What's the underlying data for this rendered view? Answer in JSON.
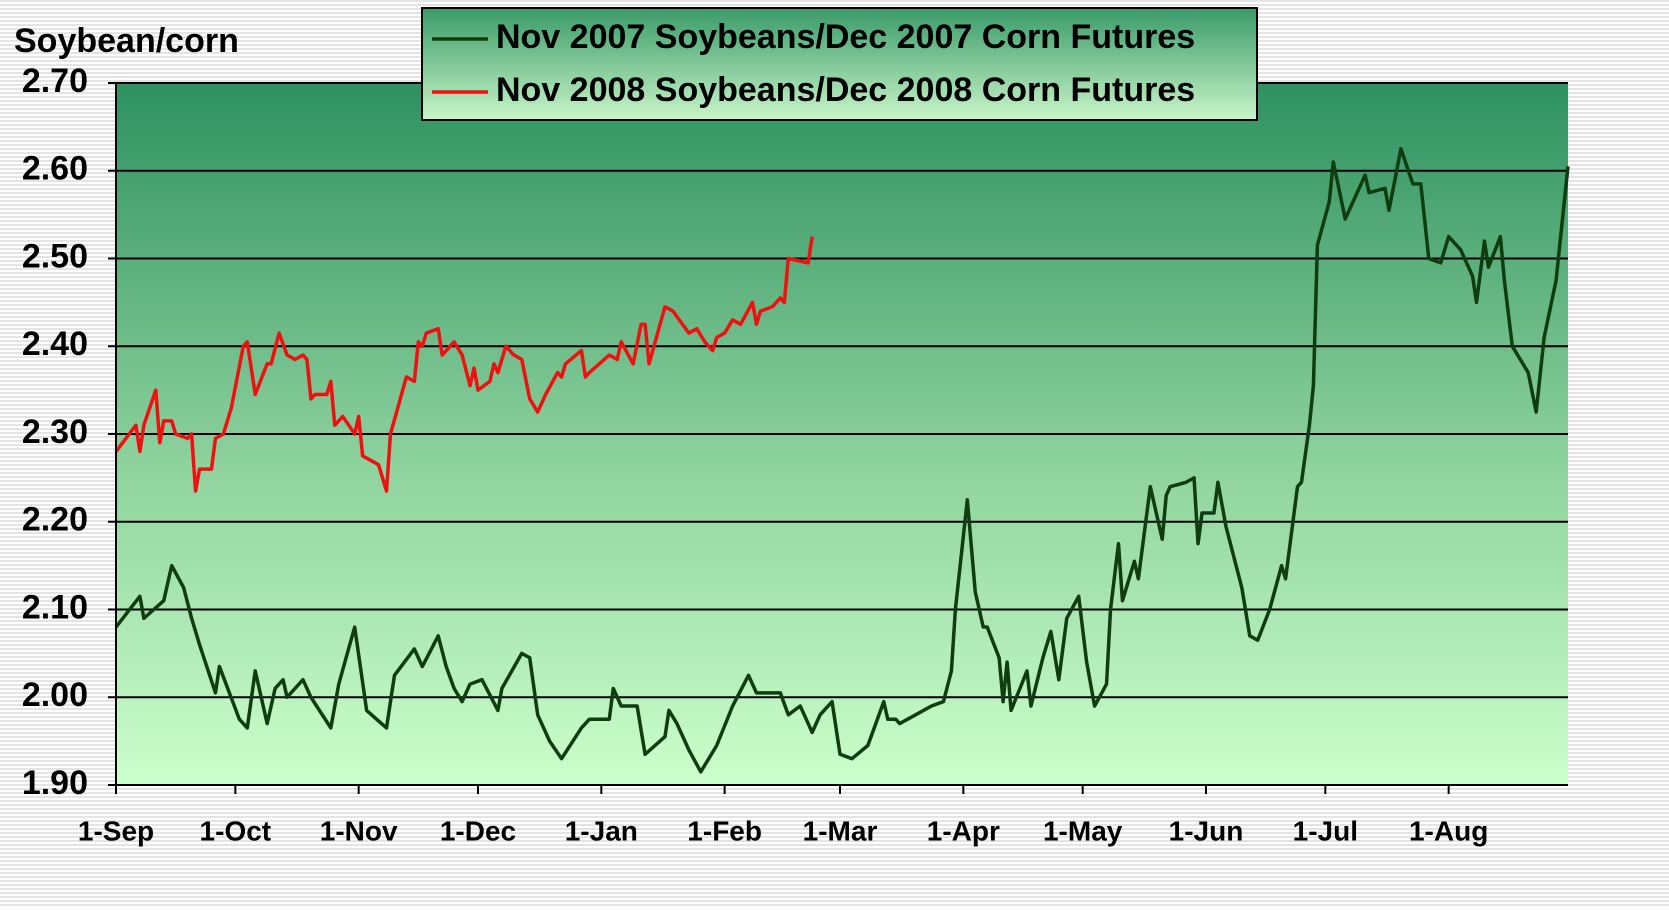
{
  "chart_data": {
    "type": "line",
    "y_label": "Soybean/corn",
    "xlim": [
      0,
      365
    ],
    "xticks": [
      {
        "value": 0,
        "label": "1-Sep"
      },
      {
        "value": 30,
        "label": "1-Oct"
      },
      {
        "value": 61,
        "label": "1-Nov"
      },
      {
        "value": 91,
        "label": "1-Dec"
      },
      {
        "value": 122,
        "label": "1-Jan"
      },
      {
        "value": 153,
        "label": "1-Feb"
      },
      {
        "value": 182,
        "label": "1-Mar"
      },
      {
        "value": 213,
        "label": "1-Apr"
      },
      {
        "value": 243,
        "label": "1-May"
      },
      {
        "value": 274,
        "label": "1-Jun"
      },
      {
        "value": 304,
        "label": "1-Jul"
      },
      {
        "value": 335,
        "label": "1-Aug"
      }
    ],
    "ylim": [
      1.9,
      2.7
    ],
    "yticks": [
      {
        "value": 1.9,
        "label": "1.90"
      },
      {
        "value": 2.0,
        "label": "2.00"
      },
      {
        "value": 2.1,
        "label": "2.10"
      },
      {
        "value": 2.2,
        "label": "2.20"
      },
      {
        "value": 2.3,
        "label": "2.30"
      },
      {
        "value": 2.4,
        "label": "2.40"
      },
      {
        "value": 2.5,
        "label": "2.50"
      },
      {
        "value": 2.6,
        "label": "2.60"
      },
      {
        "value": 2.7,
        "label": "2.70"
      }
    ],
    "grid": true,
    "legend": "top",
    "series": [
      {
        "name": "Nov 2007 Soybeans/Dec 2007 Corn Futures",
        "color": "#0f3d0f",
        "x": [
          0,
          6,
          7,
          12,
          14,
          17,
          19,
          21,
          25,
          26,
          31,
          33,
          35,
          38,
          40,
          42,
          43,
          47,
          49,
          54,
          56,
          60,
          63,
          68,
          70,
          75,
          77,
          81,
          83,
          85,
          87,
          89,
          92,
          96,
          97,
          102,
          104,
          106,
          109,
          112,
          117,
          119,
          124,
          125,
          127,
          131,
          133,
          138,
          139,
          141,
          144,
          147,
          151,
          155,
          159,
          161,
          167,
          169,
          172,
          174,
          175,
          177,
          180,
          182,
          185,
          189,
          193,
          194,
          196,
          197,
          201,
          205,
          208,
          210,
          211,
          214,
          216,
          218,
          219,
          222,
          223,
          224,
          225,
          229,
          230,
          233,
          235,
          237,
          239,
          242,
          244,
          246,
          249,
          250,
          252,
          253,
          256,
          257,
          260,
          263,
          264,
          265,
          269,
          271,
          272,
          273,
          276,
          277,
          279,
          283,
          285,
          287,
          290,
          293,
          294,
          297,
          298,
          300,
          301,
          302,
          305,
          306,
          309,
          312,
          314,
          315,
          319,
          320,
          323,
          326,
          328,
          330,
          333,
          335,
          338,
          341,
          342,
          344,
          345,
          348,
          349,
          351,
          355,
          357,
          359,
          362,
          365
        ],
        "values": [
          2.08,
          2.115,
          2.09,
          2.11,
          2.15,
          2.125,
          2.09,
          2.06,
          2.005,
          2.035,
          1.975,
          1.965,
          2.03,
          1.97,
          2.01,
          2.02,
          2.0,
          2.02,
          2.0,
          1.965,
          2.015,
          2.08,
          1.985,
          1.965,
          2.025,
          2.055,
          2.035,
          2.07,
          2.035,
          2.01,
          1.995,
          2.015,
          2.02,
          1.985,
          2.01,
          2.05,
          2.045,
          1.98,
          1.95,
          1.93,
          1.965,
          1.975,
          1.975,
          2.01,
          1.99,
          1.99,
          1.935,
          1.955,
          1.985,
          1.97,
          1.94,
          1.915,
          1.945,
          1.99,
          2.025,
          2.005,
          2.005,
          1.98,
          1.99,
          1.97,
          1.96,
          1.98,
          1.995,
          1.935,
          1.93,
          1.945,
          1.995,
          1.975,
          1.975,
          1.97,
          1.98,
          1.99,
          1.995,
          2.03,
          2.1,
          2.225,
          2.12,
          2.08,
          2.08,
          2.045,
          1.995,
          2.04,
          1.985,
          2.03,
          1.99,
          2.045,
          2.075,
          2.02,
          2.09,
          2.115,
          2.04,
          1.99,
          2.015,
          2.1,
          2.175,
          2.11,
          2.155,
          2.135,
          2.24,
          2.18,
          2.23,
          2.24,
          2.245,
          2.25,
          2.175,
          2.21,
          2.21,
          2.245,
          2.195,
          2.125,
          2.07,
          2.065,
          2.1,
          2.15,
          2.135,
          2.24,
          2.245,
          2.31,
          2.355,
          2.515,
          2.565,
          2.61,
          2.545,
          2.575,
          2.595,
          2.575,
          2.58,
          2.555,
          2.625,
          2.585,
          2.585,
          2.5,
          2.495,
          2.525,
          2.51,
          2.48,
          2.45,
          2.52,
          2.49,
          2.525,
          2.475,
          2.4,
          2.37,
          2.325,
          2.41,
          2.475,
          2.605
        ]
      },
      {
        "name": "Nov 2008 Soybeans/Dec 2008 Corn Futures",
        "color": "#ee1111",
        "x": [
          0,
          5,
          6,
          7,
          10,
          11,
          12,
          14,
          15,
          18,
          19,
          20,
          21,
          24,
          25,
          27,
          29,
          32,
          33,
          35,
          38,
          39,
          41,
          43,
          45,
          47,
          48,
          49,
          50,
          53,
          54,
          55,
          57,
          60,
          61,
          62,
          66,
          68,
          69,
          73,
          75,
          76,
          77,
          78,
          81,
          82,
          83,
          85,
          87,
          89,
          90,
          91,
          94,
          95,
          96,
          98,
          100,
          102,
          104,
          106,
          108,
          111,
          112,
          113,
          117,
          118,
          119,
          124,
          126,
          127,
          130,
          132,
          133,
          134,
          138,
          140,
          144,
          146,
          148,
          150,
          151,
          153,
          155,
          157,
          160,
          161,
          162,
          165,
          167,
          168,
          169,
          174,
          175
        ],
        "values": [
          2.28,
          2.31,
          2.28,
          2.31,
          2.35,
          2.29,
          2.315,
          2.315,
          2.3,
          2.295,
          2.3,
          2.235,
          2.26,
          2.26,
          2.295,
          2.3,
          2.33,
          2.4,
          2.405,
          2.345,
          2.38,
          2.38,
          2.415,
          2.39,
          2.385,
          2.39,
          2.385,
          2.34,
          2.345,
          2.345,
          2.36,
          2.31,
          2.32,
          2.3,
          2.32,
          2.275,
          2.265,
          2.235,
          2.3,
          2.365,
          2.36,
          2.405,
          2.4,
          2.415,
          2.42,
          2.39,
          2.395,
          2.405,
          2.39,
          2.355,
          2.375,
          2.35,
          2.36,
          2.38,
          2.37,
          2.4,
          2.39,
          2.385,
          2.34,
          2.325,
          2.345,
          2.37,
          2.365,
          2.38,
          2.395,
          2.365,
          2.37,
          2.39,
          2.385,
          2.405,
          2.38,
          2.425,
          2.425,
          2.38,
          2.445,
          2.44,
          2.415,
          2.42,
          2.405,
          2.395,
          2.41,
          2.415,
          2.43,
          2.425,
          2.45,
          2.425,
          2.44,
          2.445,
          2.455,
          2.45,
          2.5,
          2.495,
          2.525
        ]
      }
    ]
  }
}
